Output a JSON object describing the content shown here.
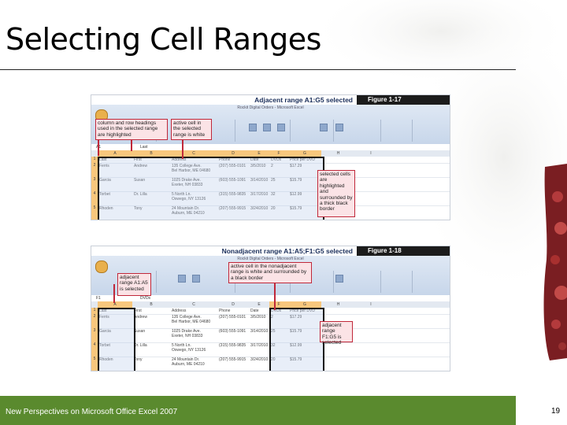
{
  "slide": {
    "title": "Selecting Cell Ranges",
    "footer": "New Perspectives on Microsoft Office Excel 2007",
    "page_number": "19"
  },
  "figure1": {
    "caption": "Adjacent range A1:G5 selected",
    "figure_number": "Figure 1-17",
    "window_title": "Rockit Digital Orders - Microsoft Excel",
    "name_box": "A1",
    "formula": "Last",
    "columns": [
      "A",
      "B",
      "C",
      "D",
      "E",
      "F",
      "G",
      "H",
      "I"
    ],
    "rows": [
      {
        "n": "1",
        "cells": [
          "Last",
          "First",
          "Address",
          "Phone",
          "Date",
          "DVDs",
          "Price per DVD"
        ]
      },
      {
        "n": "2",
        "cells": [
          "Ferris",
          "Andrew",
          "135 College Ave.\nBel Harbor, ME 04680",
          "(207) 555-0101",
          "3/5/2010",
          "2",
          "$17.29"
        ]
      },
      {
        "n": "3",
        "cells": [
          "Garcia",
          "Susan",
          "1025 Drake Ave.\nExeter, NH 03833",
          "(603) 555-1091",
          "3/14/2010",
          "25",
          "$15.79"
        ]
      },
      {
        "n": "4",
        "cells": [
          "Torbet",
          "Dr. Lilla",
          "5 North Ln.\nOswego, NY 13126",
          "(315) 555-9835",
          "3/17/2010",
          "32",
          "$12.99"
        ]
      },
      {
        "n": "5",
        "cells": [
          "Rhoden",
          "Tony",
          "24 Mountain Dr.\nAuburn, ME 04210",
          "(207) 555-9915",
          "3/24/2010",
          "20",
          "$15.79"
        ]
      }
    ],
    "callouts": {
      "headings": "column and row headings used in the selected range are highlighted",
      "active": "active cell in the selected range is white",
      "border": "selected cells are highlighted and surrounded by a thick black border"
    }
  },
  "figure2": {
    "caption": "Nonadjacent range A1:A5;F1:G5 selected",
    "figure_number": "Figure 1-18",
    "window_title": "Rockit Digital Orders - Microsoft Excel",
    "name_box": "F1",
    "formula": "DVDs",
    "columns": [
      "A",
      "B",
      "C",
      "D",
      "E",
      "F",
      "G",
      "H",
      "I"
    ],
    "rows": [
      {
        "n": "1",
        "cells": [
          "Last",
          "First",
          "Address",
          "Phone",
          "Date",
          "DVDs",
          "Price per DVD"
        ]
      },
      {
        "n": "2",
        "cells": [
          "Ferris",
          "Andrew",
          "135 College Ave.\nBel Harbor, ME 04680",
          "(207) 555-0101",
          "3/5/2010",
          "2",
          "$17.29"
        ]
      },
      {
        "n": "3",
        "cells": [
          "Garcia",
          "Susan",
          "1025 Drake Ave.\nExeter, NH 03833",
          "(603) 555-1091",
          "3/14/2010",
          "25",
          "$15.79"
        ]
      },
      {
        "n": "4",
        "cells": [
          "Torbet",
          "Dr. Lilla",
          "5 North Ln.\nOswego, NY 13126",
          "(315) 555-9835",
          "3/17/2010",
          "32",
          "$12.99"
        ]
      },
      {
        "n": "5",
        "cells": [
          "Rhoden",
          "Tony",
          "24 Mountain Dr.\nAuburn, ME 04210",
          "(207) 555-9915",
          "3/24/2010",
          "20",
          "$15.79"
        ]
      }
    ],
    "callouts": {
      "active": "active cell in the nonadjacent range is white and surrounded by a black border",
      "adjacent_a": "adjacent range A1:A5 is selected",
      "adjacent_f": "adjacent range F1:G5 is selected"
    }
  },
  "colors": {
    "accent": "#5a8a2e",
    "callout_border": "#c0283a",
    "callout_fill": "#fbe3e6",
    "figure_bar": "#1c1c1c"
  }
}
